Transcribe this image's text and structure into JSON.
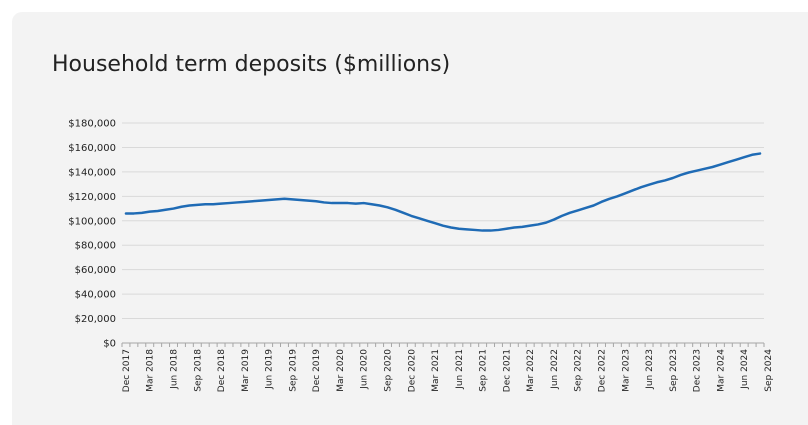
{
  "chart_data": {
    "type": "line",
    "title": "Household term deposits ($millions)",
    "xlabel": "",
    "ylabel": "",
    "ylim": [
      0,
      180000
    ],
    "y_ticks": [
      "$0",
      "$20,000",
      "$40,000",
      "$60,000",
      "$80,000",
      "$100,000",
      "$120,000",
      "$140,000",
      "$160,000",
      "$180,000"
    ],
    "y_tick_values": [
      0,
      20000,
      40000,
      60000,
      80000,
      100000,
      120000,
      140000,
      160000,
      180000
    ],
    "x_ticks": [
      "Dec 2017",
      "Mar 2018",
      "Jun 2018",
      "Sep 2018",
      "Dec 2018",
      "Mar 2019",
      "Jun 2019",
      "Sep 2019",
      "Dec 2019",
      "Mar 2020",
      "Jun 2020",
      "Sep 2020",
      "Dec 2020",
      "Mar 2021",
      "Jun 2021",
      "Sep 2021",
      "Dec 2021",
      "Mar 2022",
      "Jun 2022",
      "Sep 2022",
      "Dec 2022",
      "Mar 2023",
      "Jun 2023",
      "Sep 2023",
      "Dec 2023",
      "Mar 2024",
      "Jun 2024",
      "Sep 2024"
    ],
    "grid": true,
    "legend": "none",
    "line_color": "#1f6bb5",
    "series": [
      {
        "values": [
          106000,
          106000,
          106500,
          107500,
          108000,
          109000,
          110000,
          111500,
          112500,
          113000,
          113500,
          113500,
          114000,
          114500,
          115000,
          115500,
          116000,
          116500,
          117000,
          117500,
          118000,
          117500,
          117000,
          116500,
          116000,
          115000,
          114500,
          114500,
          114500,
          114000,
          114500,
          113500,
          112500,
          111000,
          109000,
          106500,
          104000,
          102000,
          100000,
          98000,
          96000,
          94500,
          93500,
          93000,
          92500,
          92000,
          92000,
          92500,
          93500,
          94500,
          95000,
          96000,
          97000,
          98500,
          101000,
          104000,
          106500,
          108500,
          110500,
          112500,
          115500,
          118000,
          120000,
          122500,
          125000,
          127500,
          129500,
          131500,
          133000,
          135000,
          137500,
          139500,
          141000,
          142500,
          144000,
          146000,
          148000,
          150000,
          152000,
          154000,
          155000
        ]
      }
    ]
  }
}
